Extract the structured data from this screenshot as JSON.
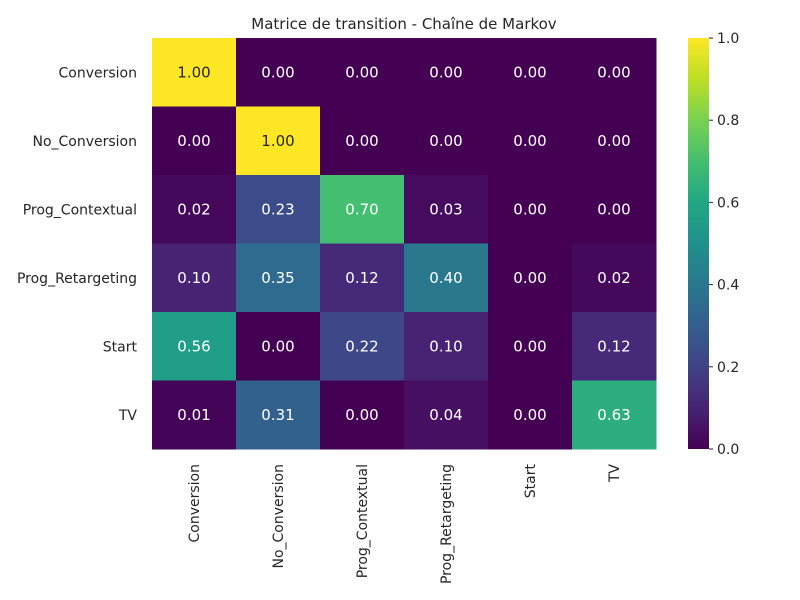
{
  "chart_data": {
    "type": "heatmap",
    "title": "Matrice de transition - Chaîne de Markov",
    "rows": [
      "Conversion",
      "No_Conversion",
      "Prog_Contextual",
      "Prog_Retargeting",
      "Start",
      "TV"
    ],
    "columns": [
      "Conversion",
      "No_Conversion",
      "Prog_Contextual",
      "Prog_Retargeting",
      "Start",
      "TV"
    ],
    "values": [
      [
        1.0,
        0.0,
        0.0,
        0.0,
        0.0,
        0.0
      ],
      [
        0.0,
        1.0,
        0.0,
        0.0,
        0.0,
        0.0
      ],
      [
        0.02,
        0.23,
        0.7,
        0.03,
        0.0,
        0.0
      ],
      [
        0.1,
        0.35,
        0.12,
        0.4,
        0.0,
        0.02
      ],
      [
        0.56,
        0.0,
        0.22,
        0.1,
        0.0,
        0.12
      ],
      [
        0.01,
        0.31,
        0.0,
        0.04,
        0.0,
        0.63
      ]
    ],
    "cell_labels": [
      [
        "1.00",
        "0.00",
        "0.00",
        "0.00",
        "0.00",
        "0.00"
      ],
      [
        "0.00",
        "1.00",
        "0.00",
        "0.00",
        "0.00",
        "0.00"
      ],
      [
        "0.02",
        "0.23",
        "0.70",
        "0.03",
        "0.00",
        "0.00"
      ],
      [
        "0.10",
        "0.35",
        "0.12",
        "0.40",
        "0.00",
        "0.02"
      ],
      [
        "0.56",
        "0.00",
        "0.22",
        "0.10",
        "0.00",
        "0.12"
      ],
      [
        "0.01",
        "0.31",
        "0.00",
        "0.04",
        "0.00",
        "0.63"
      ]
    ],
    "colormap": "viridis",
    "colorbar": {
      "range": [
        0,
        1
      ],
      "ticks": [
        0.0,
        0.2,
        0.4,
        0.6,
        0.8,
        1.0
      ],
      "tick_labels": [
        "0.0",
        "0.2",
        "0.4",
        "0.6",
        "0.8",
        "1.0"
      ]
    },
    "grid": false,
    "x_tick_rotation": "vertical"
  }
}
